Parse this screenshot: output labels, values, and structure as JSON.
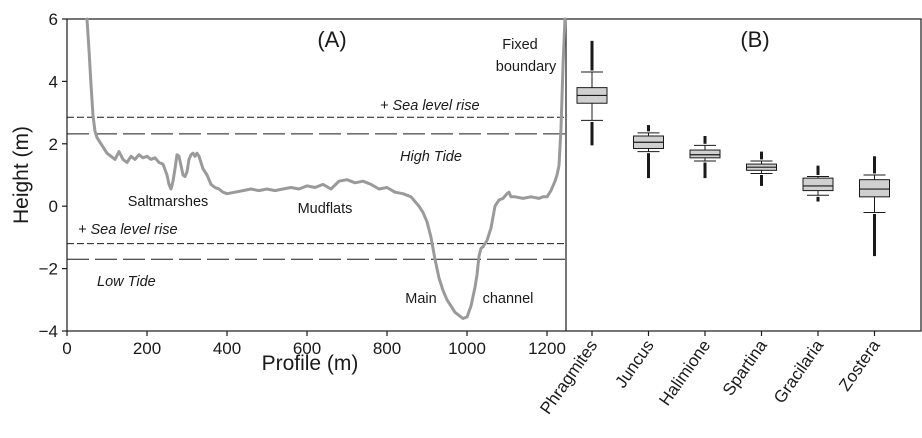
{
  "chart_data": [
    {
      "type": "line",
      "panel": "(A)",
      "xlabel": "Profile (m)",
      "ylabel": "Height (m)",
      "xlim": [
        0,
        1260
      ],
      "ylim": [
        -4,
        6
      ],
      "xticks": [
        "0",
        "200",
        "400",
        "600",
        "800",
        "1000",
        "1200"
      ],
      "yticks": [
        "−4",
        "−2",
        "0",
        "2",
        "4",
        "6"
      ],
      "grid": false,
      "series": [
        {
          "color": "#9a9a9a",
          "x": [
            50,
            55,
            60,
            65,
            70,
            75,
            80,
            85,
            90,
            95,
            100,
            110,
            120,
            130,
            140,
            150,
            160,
            170,
            180,
            190,
            200,
            210,
            220,
            230,
            240,
            250,
            255,
            260,
            265,
            270,
            275,
            280,
            285,
            290,
            295,
            300,
            305,
            310,
            315,
            320,
            325,
            330,
            335,
            340,
            350,
            360,
            370,
            380,
            390,
            400,
            420,
            440,
            460,
            480,
            500,
            520,
            540,
            560,
            580,
            600,
            620,
            640,
            660,
            680,
            700,
            720,
            740,
            760,
            780,
            800,
            820,
            840,
            860,
            870,
            880,
            890,
            900,
            910,
            920,
            930,
            940,
            950,
            960,
            970,
            980,
            990,
            1000,
            1010,
            1020,
            1025,
            1030,
            1035,
            1040,
            1050,
            1060,
            1070,
            1080,
            1090,
            1100,
            1105,
            1110,
            1120,
            1140,
            1160,
            1180,
            1190,
            1200,
            1210,
            1220,
            1225,
            1230,
            1235,
            1240,
            1245
          ],
          "y": [
            6.0,
            5.0,
            3.9,
            2.9,
            2.4,
            2.2,
            2.1,
            2.0,
            1.9,
            1.8,
            1.7,
            1.6,
            1.5,
            1.75,
            1.5,
            1.4,
            1.6,
            1.5,
            1.65,
            1.55,
            1.6,
            1.5,
            1.55,
            1.4,
            1.35,
            1.0,
            0.7,
            0.55,
            0.8,
            1.2,
            1.65,
            1.6,
            1.3,
            1.0,
            0.95,
            1.1,
            1.5,
            1.65,
            1.7,
            1.6,
            1.7,
            1.6,
            1.4,
            1.2,
            1.0,
            0.7,
            0.6,
            0.55,
            0.45,
            0.4,
            0.45,
            0.5,
            0.55,
            0.5,
            0.55,
            0.5,
            0.55,
            0.6,
            0.55,
            0.65,
            0.6,
            0.7,
            0.55,
            0.8,
            0.85,
            0.75,
            0.8,
            0.7,
            0.55,
            0.6,
            0.45,
            0.4,
            0.3,
            0.15,
            0.0,
            -0.2,
            -0.5,
            -1.0,
            -1.7,
            -2.3,
            -2.7,
            -3.0,
            -3.2,
            -3.4,
            -3.5,
            -3.6,
            -3.55,
            -3.2,
            -2.6,
            -2.2,
            -1.6,
            -1.35,
            -1.3,
            -1.1,
            -0.7,
            0.0,
            0.2,
            0.25,
            0.4,
            0.45,
            0.3,
            0.3,
            0.25,
            0.3,
            0.25,
            0.3,
            0.3,
            0.5,
            0.8,
            1.0,
            1.3,
            2.5,
            4.5,
            6.0
          ]
        }
      ],
      "reference_lines": [
        {
          "y": 2.85,
          "style": "short-dash",
          "label": "+ Sea level rise"
        },
        {
          "y": 2.32,
          "style": "long-dash",
          "label": "High Tide"
        },
        {
          "y": -1.2,
          "style": "short-dash",
          "label": "+ Sea level rise"
        },
        {
          "y": -1.7,
          "style": "long-dash",
          "label": "Low Tide"
        }
      ],
      "annotations": [
        "Fixed",
        "boundary",
        "Saltmarshes",
        "Mudflats",
        "Main",
        "channel"
      ]
    },
    {
      "type": "box",
      "panel": "(B)",
      "categories": [
        "Phragmites",
        "Juncus",
        "Halimione",
        "Spartina",
        "Gracilaria",
        "Zostera"
      ],
      "ylim": [
        -4,
        6
      ],
      "box_color": "#d0d0d0",
      "boxes": [
        {
          "whisker_low": 2.75,
          "q1": 3.3,
          "median": 3.55,
          "q3": 3.8,
          "whisker_high": 4.3,
          "outliers_low": [
            2.7,
            1.95
          ],
          "outliers_high": [
            4.35,
            5.3
          ]
        },
        {
          "whisker_low": 1.75,
          "q1": 1.85,
          "median": 2.05,
          "q3": 2.25,
          "whisker_high": 2.35,
          "outliers_low": [
            1.7,
            0.9
          ],
          "outliers_high": [
            2.4,
            2.6
          ]
        },
        {
          "whisker_low": 1.45,
          "q1": 1.55,
          "median": 1.65,
          "q3": 1.8,
          "whisker_high": 1.95,
          "outliers_low": [
            1.4,
            0.9
          ],
          "outliers_high": [
            2.0,
            2.25
          ]
        },
        {
          "whisker_low": 1.05,
          "q1": 1.15,
          "median": 1.25,
          "q3": 1.35,
          "whisker_high": 1.45,
          "outliers_low": [
            1.0,
            0.65
          ],
          "outliers_high": [
            1.5,
            1.75
          ]
        },
        {
          "whisker_low": 0.35,
          "q1": 0.5,
          "median": 0.65,
          "q3": 0.9,
          "whisker_high": 0.95,
          "outliers_low": [
            0.3,
            0.15
          ],
          "outliers_high": [
            1.0,
            1.3
          ]
        },
        {
          "whisker_low": -0.2,
          "q1": 0.3,
          "median": 0.55,
          "q3": 0.85,
          "whisker_high": 1.0,
          "outliers_low": [
            -0.25,
            -1.6
          ],
          "outliers_high": [
            1.05,
            1.6
          ]
        }
      ]
    }
  ]
}
